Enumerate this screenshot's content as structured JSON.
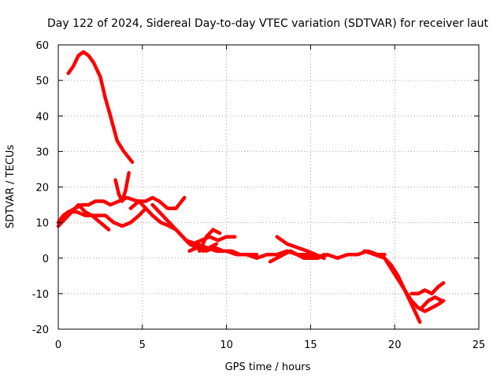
{
  "chart_data": {
    "type": "line",
    "title": "Day 122 of 2024, Sidereal Day-to-day VTEC variation (SDTVAR) for receiver laut",
    "xlabel": "GPS time / hours",
    "ylabel": "SDTVAR / TECUs",
    "xlim": [
      0,
      25
    ],
    "ylim": [
      -20,
      60
    ],
    "xticks": [
      0,
      5,
      10,
      15,
      20,
      25
    ],
    "yticks": [
      -20,
      -10,
      0,
      10,
      20,
      30,
      40,
      50,
      60
    ],
    "grid": true,
    "series_color": "#ff0000",
    "series": [
      {
        "name": "trace-1",
        "x": [
          0.6,
          0.9,
          1.2,
          1.5,
          1.8,
          2.1,
          2.5,
          2.8,
          3.1,
          3.5,
          3.9,
          4.4
        ],
        "y": [
          52,
          54,
          57,
          58,
          57,
          55,
          51,
          45,
          40,
          33,
          30,
          27
        ]
      },
      {
        "name": "trace-2",
        "x": [
          0.0,
          0.3,
          0.6,
          1.0,
          1.4,
          1.8,
          2.2,
          2.7,
          3.1,
          3.6,
          4.1,
          4.7,
          5.2,
          5.6,
          6.0,
          6.5,
          7.0,
          7.5
        ],
        "y": [
          10,
          12,
          13,
          14,
          15,
          15,
          16,
          16,
          15,
          16,
          17,
          16,
          16,
          17,
          16,
          14,
          14,
          17
        ]
      },
      {
        "name": "trace-3",
        "x": [
          0.0,
          0.4,
          0.8,
          1.2,
          1.6,
          2.0,
          2.5,
          3.0
        ],
        "y": [
          9,
          11,
          13,
          15,
          13,
          12,
          10,
          8
        ]
      },
      {
        "name": "trace-4",
        "x": [
          0.2,
          0.6,
          1.1,
          1.6,
          2.2,
          2.8,
          3.3,
          3.8,
          4.3,
          4.8,
          5.2
        ],
        "y": [
          11,
          13,
          13,
          12,
          12,
          12,
          10,
          9,
          10,
          12,
          14
        ]
      },
      {
        "name": "trace-5",
        "x": [
          3.4,
          3.6,
          3.8,
          4.0,
          4.2
        ],
        "y": [
          22,
          18,
          16,
          19,
          24
        ]
      },
      {
        "name": "trace-6",
        "x": [
          4.3,
          4.8,
          5.2,
          5.6,
          6.1,
          6.6,
          7.0,
          7.4,
          7.8,
          8.2,
          8.6,
          9.0,
          9.4
        ],
        "y": [
          14,
          16,
          14,
          12,
          10,
          9,
          8,
          6,
          4,
          3,
          2,
          3,
          4
        ]
      },
      {
        "name": "trace-7",
        "x": [
          5.6,
          6.0,
          6.4,
          6.8,
          7.2,
          7.6,
          8.0,
          8.5,
          9.0,
          9.5,
          10.0,
          10.5
        ],
        "y": [
          15,
          13,
          11,
          9,
          7,
          5,
          4,
          5,
          6,
          5,
          6,
          6
        ]
      },
      {
        "name": "trace-8",
        "x": [
          7.6,
          8.2,
          8.8,
          9.4,
          10.0,
          10.6,
          11.2,
          11.8,
          12.4,
          13.0,
          13.6,
          14.2,
          14.8,
          15.4,
          16.0,
          16.6,
          17.2,
          17.8,
          18.4,
          19.0,
          19.4
        ],
        "y": [
          5,
          4,
          3,
          2,
          2,
          1,
          1,
          0,
          1,
          1,
          2,
          1,
          1,
          0,
          1,
          0,
          1,
          1,
          2,
          1,
          1
        ]
      },
      {
        "name": "trace-9",
        "x": [
          7.8,
          8.3,
          8.8,
          9.3,
          9.8,
          10.3,
          10.8,
          11.3,
          11.8
        ],
        "y": [
          2,
          3,
          2,
          3,
          2,
          2,
          1,
          1,
          1
        ]
      },
      {
        "name": "trace-10",
        "x": [
          8.4,
          8.8,
          9.2,
          9.6
        ],
        "y": [
          2,
          6,
          8,
          7
        ]
      },
      {
        "name": "trace-11",
        "x": [
          12.6,
          13.0,
          13.4,
          13.8,
          14.2,
          14.6,
          15.0,
          15.4,
          15.8
        ],
        "y": [
          -1,
          0,
          1,
          2,
          1,
          0,
          0,
          0,
          1
        ]
      },
      {
        "name": "trace-12",
        "x": [
          13.0,
          13.6,
          14.2,
          14.8,
          15.3,
          15.8
        ],
        "y": [
          6,
          4,
          3,
          2,
          1,
          0
        ]
      },
      {
        "name": "trace-13",
        "x": [
          18.2,
          18.8,
          19.4,
          19.8,
          20.2,
          20.6,
          21.0,
          21.4,
          21.8,
          22.2,
          22.6,
          22.9
        ],
        "y": [
          2,
          1,
          0,
          -2,
          -5,
          -9,
          -12,
          -14,
          -15,
          -14,
          -13,
          -12
        ]
      },
      {
        "name": "trace-14",
        "x": [
          19.4,
          19.8,
          20.2,
          20.6,
          21.0,
          21.3,
          21.5
        ],
        "y": [
          0,
          -3,
          -6,
          -9,
          -13,
          -16,
          -18
        ]
      },
      {
        "name": "trace-15",
        "x": [
          21.0,
          21.4,
          21.8,
          22.2,
          22.6,
          22.9
        ],
        "y": [
          -10,
          -10,
          -9,
          -10,
          -8,
          -7
        ]
      },
      {
        "name": "trace-16",
        "x": [
          21.6,
          22.0,
          22.4,
          22.8
        ],
        "y": [
          -14,
          -12,
          -11,
          -12
        ]
      }
    ]
  }
}
